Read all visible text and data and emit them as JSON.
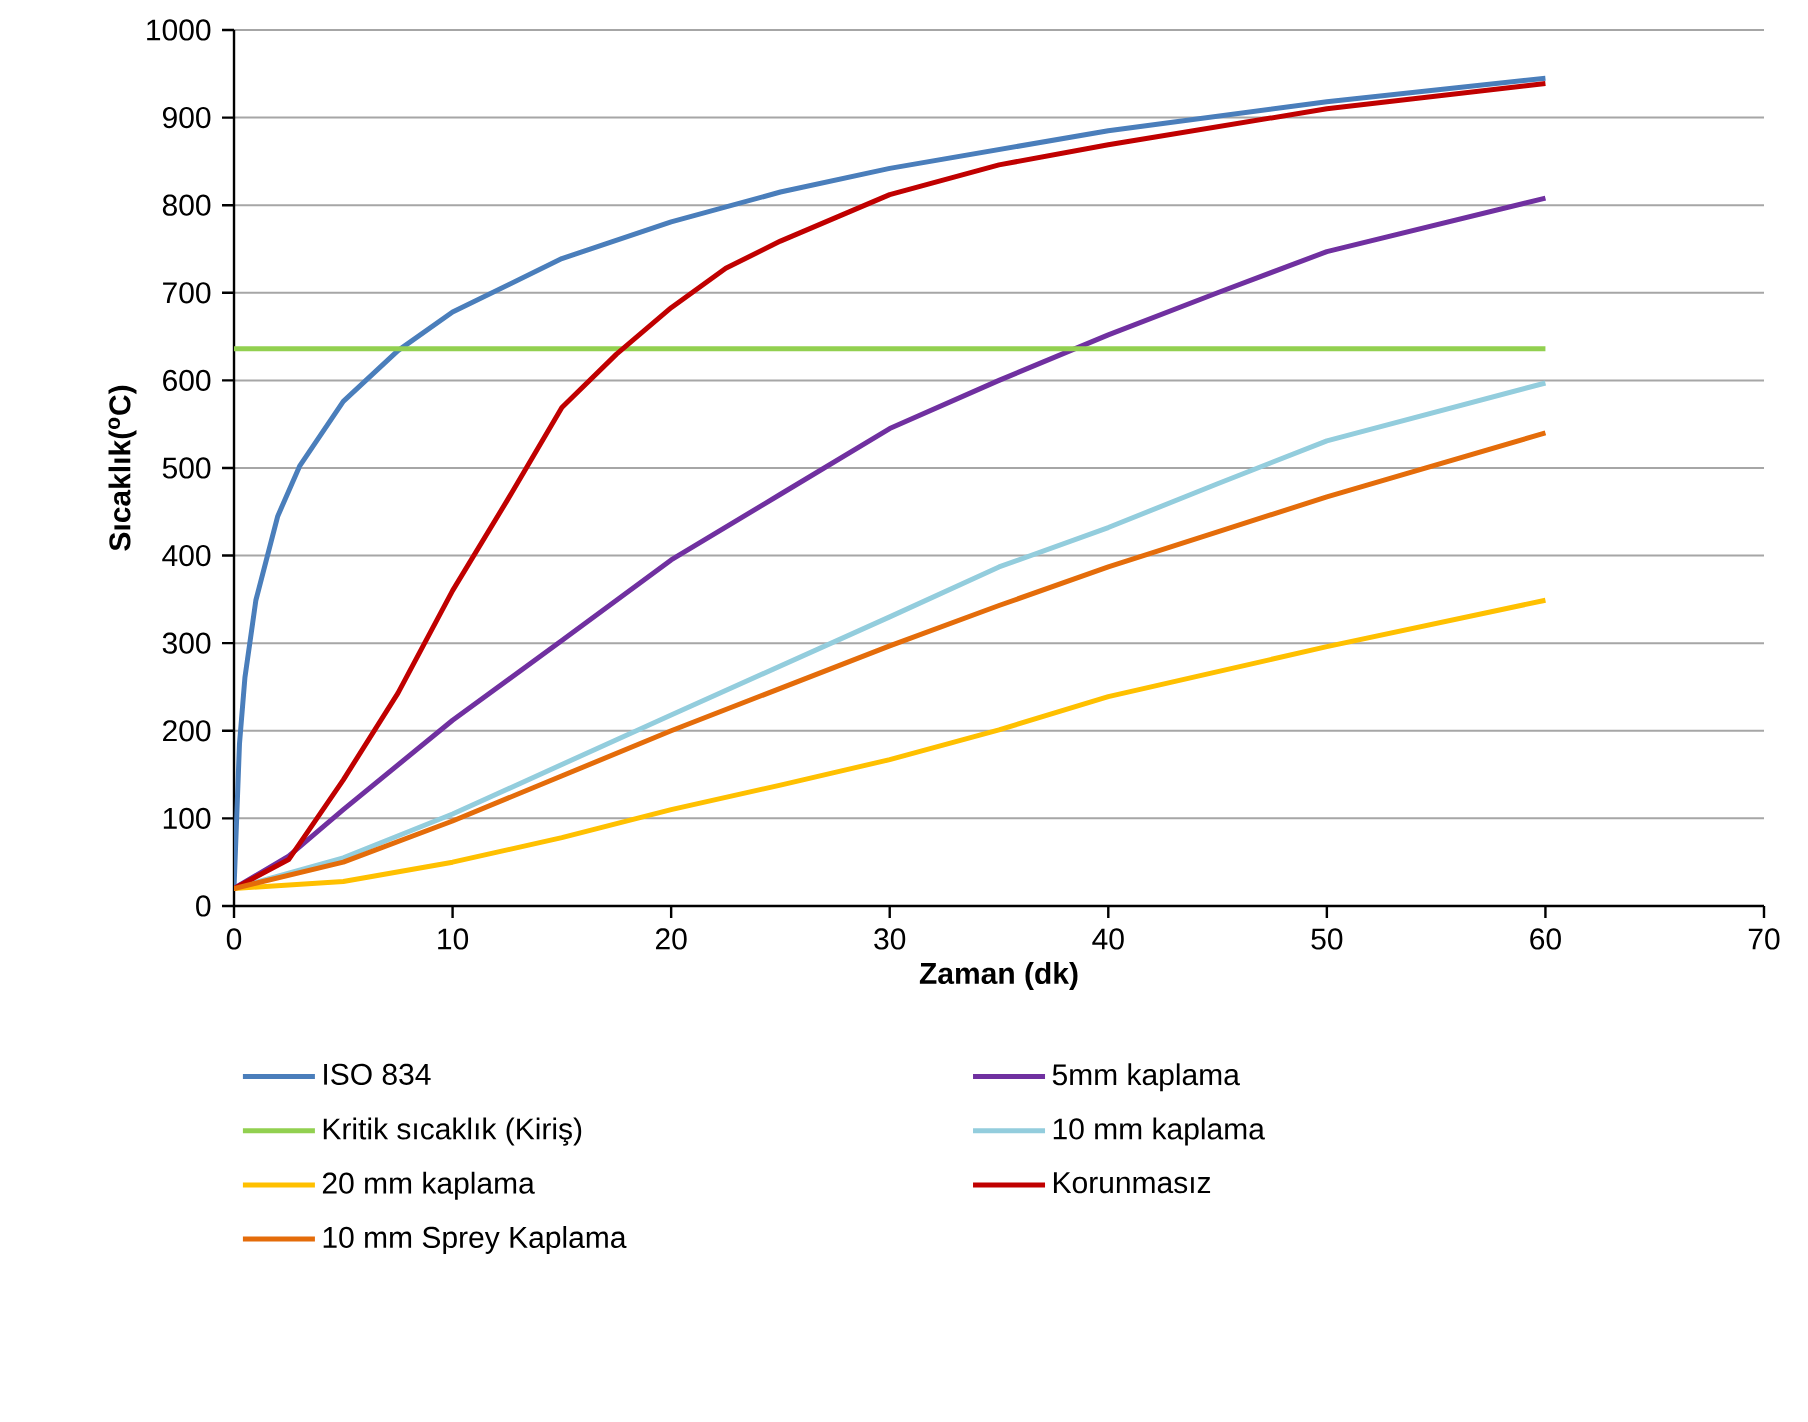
{
  "chart_data": {
    "type": "line",
    "xlabel": "Zaman (dk)",
    "ylabel": "Sıcaklık($^{o}$C)",
    "xlim": [
      0,
      70
    ],
    "ylim": [
      0,
      1000
    ],
    "xticks": [
      0,
      10,
      20,
      30,
      40,
      50,
      60,
      70
    ],
    "yticks": [
      0,
      100,
      200,
      300,
      400,
      500,
      600,
      700,
      800,
      900,
      1000
    ],
    "grid": "y",
    "legend": "bottom",
    "series": [
      {
        "name": "ISO 834",
        "color": "#4a7ebb",
        "x": [
          0,
          0.25,
          0.5,
          1,
          2,
          3,
          5,
          7.5,
          10,
          15,
          20,
          25,
          30,
          40,
          50,
          60
        ],
        "values": [
          20,
          185,
          261,
          349,
          445,
          502,
          576,
          634,
          678,
          739,
          781,
          815,
          842,
          885,
          918,
          945
        ]
      },
      {
        "name": "5mm kaplama",
        "color": "#7030a0",
        "x": [
          0,
          2.5,
          5,
          10,
          15,
          20,
          25,
          30,
          35,
          40,
          45,
          50,
          60
        ],
        "values": [
          20,
          57,
          110,
          212,
          303,
          395,
          470,
          545,
          600,
          652,
          700,
          747,
          808
        ]
      },
      {
        "name": "Kritik sıcaklık (Kiriş)",
        "color": "#92d050",
        "x": [
          0,
          60
        ],
        "values": [
          636,
          636
        ]
      },
      {
        "name": "10 mm kaplama",
        "color": "#93cddd",
        "x": [
          0,
          5,
          10,
          20,
          30,
          35,
          40,
          45,
          50,
          60
        ],
        "values": [
          20,
          55,
          105,
          218,
          330,
          387,
          432,
          482,
          531,
          597
        ]
      },
      {
        "name": "20 mm kaplama",
        "color": "#ffc000",
        "x": [
          0,
          5,
          10,
          15,
          20,
          25,
          30,
          35,
          40,
          50,
          60
        ],
        "values": [
          20,
          28,
          50,
          78,
          110,
          138,
          167,
          201,
          239,
          296,
          349
        ]
      },
      {
        "name": "Korunmasız",
        "color": "#c00000",
        "x": [
          0,
          2.5,
          5,
          7.5,
          10,
          12.5,
          15,
          17.5,
          20,
          22.5,
          25,
          30,
          35,
          40,
          50,
          60
        ],
        "values": [
          20,
          53,
          144,
          243,
          360,
          463,
          569,
          630,
          683,
          728,
          759,
          812,
          846,
          869,
          910,
          939
        ]
      },
      {
        "name": "10 mm Sprey Kaplama",
        "color": "#e46c0a",
        "x": [
          0,
          5,
          10,
          20,
          30,
          35,
          40,
          45,
          50,
          60
        ],
        "values": [
          20,
          50,
          97,
          200,
          297,
          343,
          387,
          427,
          467,
          540
        ]
      }
    ]
  }
}
